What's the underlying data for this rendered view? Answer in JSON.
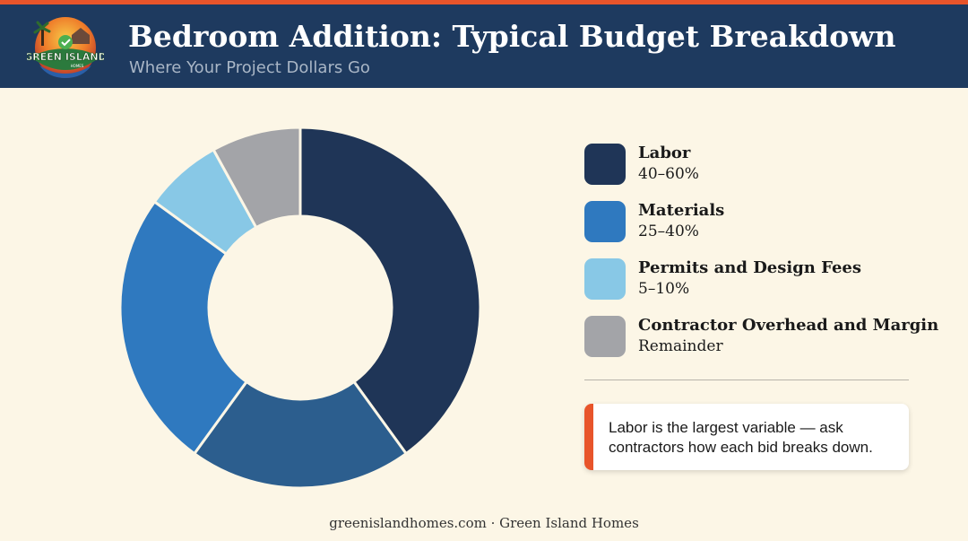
{
  "header": {
    "title": "Bedroom Addition: Typical Budget Breakdown",
    "subtitle": "Where Your Project Dollars Go",
    "logo_text": "GREEN ISLAND",
    "logo_subtext": "HOMES"
  },
  "colors": {
    "accent": "#e8542a",
    "header_bg": "#1e3a5f",
    "page_bg": "#fcf6e6"
  },
  "chart_data": {
    "type": "pie",
    "donut": true,
    "legend_position": "right",
    "categories": [
      "Labor",
      "Materials",
      "Permits and Design Fees",
      "Contractor Overhead and Margin"
    ],
    "range_labels": [
      "40–60%",
      "25–40%",
      "5–10%",
      "Remainder"
    ],
    "colors": [
      "#1f3557",
      "#2f79bf",
      "#88c8e6",
      "#a3a4a8"
    ],
    "slices": [
      {
        "category": "Labor",
        "value": 40,
        "color": "#1f3557"
      },
      {
        "category": "Labor",
        "value": 20,
        "color": "#2c5e8e"
      },
      {
        "category": "Materials",
        "value": 25,
        "color": "#2f79bf"
      },
      {
        "category": "Permits and Design Fees",
        "value": 7,
        "color": "#88c8e6"
      },
      {
        "category": "Contractor Overhead and Margin",
        "value": 8,
        "color": "#a3a4a8"
      }
    ]
  },
  "legend": [
    {
      "label": "Labor",
      "value": "40–60%",
      "color": "#1f3557"
    },
    {
      "label": "Materials",
      "value": "25–40%",
      "color": "#2f79bf"
    },
    {
      "label": "Permits and Design Fees",
      "value": "5–10%",
      "color": "#88c8e6"
    },
    {
      "label": "Contractor Overhead and Margin",
      "value": "Remainder",
      "color": "#a3a4a8"
    }
  ],
  "callout": {
    "text": "Labor is the largest variable — ask contractors how each bid breaks down."
  },
  "footer": {
    "text": "greenislandhomes.com · Green Island Homes"
  }
}
